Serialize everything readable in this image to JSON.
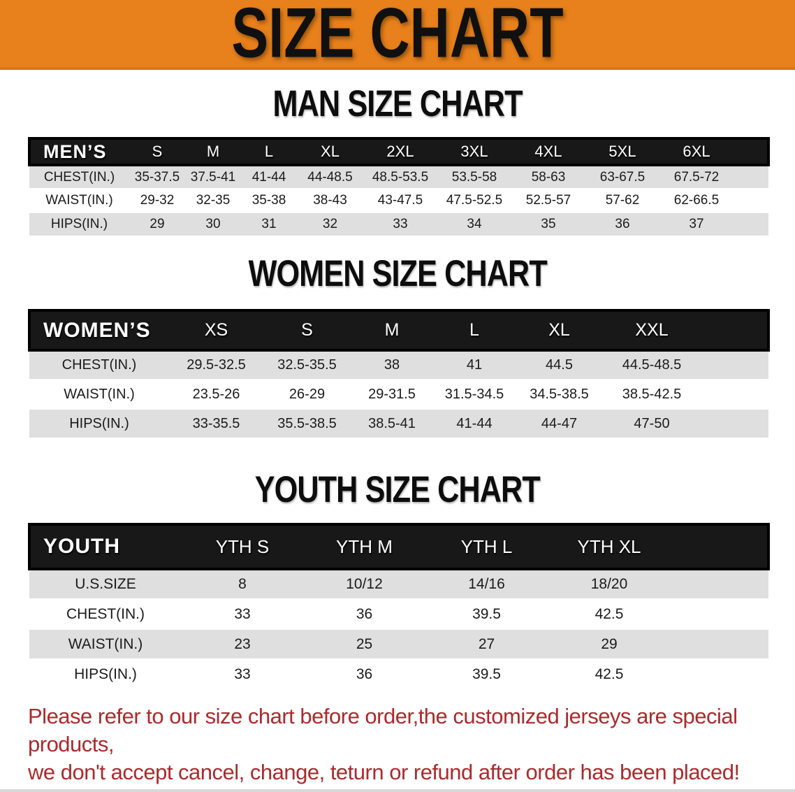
{
  "banner": {
    "title": "SIZE CHART"
  },
  "sections": [
    {
      "title": "MAN SIZE CHART",
      "table": {
        "corner": "MEN’S",
        "sizes": [
          "S",
          "M",
          "L",
          "XL",
          "2XL",
          "3XL",
          "4XL",
          "5XL",
          "6XL"
        ],
        "rows": [
          {
            "label": "CHEST(IN.)",
            "values": [
              "35-37.5",
              "37.5-41",
              "41-44",
              "44-48.5",
              "48.5-53.5",
              "53.5-58",
              "58-63",
              "63-67.5",
              "67.5-72"
            ]
          },
          {
            "label": "WAIST(IN.)",
            "values": [
              "29-32",
              "32-35",
              "35-38",
              "38-43",
              "43-47.5",
              "47.5-52.5",
              "52.5-57",
              "57-62",
              "62-66.5"
            ]
          },
          {
            "label": "HIPS(IN.)",
            "values": [
              "29",
              "30",
              "31",
              "32",
              "33",
              "34",
              "35",
              "36",
              "37"
            ]
          }
        ]
      }
    },
    {
      "title": "WOMEN SIZE CHART",
      "table": {
        "corner": "WOMEN’S",
        "sizes": [
          "XS",
          "S",
          "M",
          "L",
          "XL",
          "XXL"
        ],
        "rows": [
          {
            "label": "CHEST(IN.)",
            "values": [
              "29.5-32.5",
              "32.5-35.5",
              "38",
              "41",
              "44.5",
              "44.5-48.5"
            ]
          },
          {
            "label": "WAIST(IN.)",
            "values": [
              "23.5-26",
              "26-29",
              "29-31.5",
              "31.5-34.5",
              "34.5-38.5",
              "38.5-42.5"
            ]
          },
          {
            "label": "HIPS(IN.)",
            "values": [
              "33-35.5",
              "35.5-38.5",
              "38.5-41",
              "41-44",
              "44-47",
              "47-50"
            ]
          }
        ]
      }
    },
    {
      "title": "YOUTH SIZE CHART",
      "table": {
        "corner": "YOUTH",
        "sizes": [
          "YTH S",
          "YTH M",
          "YTH L",
          "YTH XL"
        ],
        "rows": [
          {
            "label": "U.S.SIZE",
            "values": [
              "8",
              "10/12",
              "14/16",
              "18/20"
            ]
          },
          {
            "label": "CHEST(IN.)",
            "values": [
              "33",
              "36",
              "39.5",
              "42.5"
            ]
          },
          {
            "label": "WAIST(IN.)",
            "values": [
              "23",
              "25",
              "27",
              "29"
            ]
          },
          {
            "label": "HIPS(IN.)",
            "values": [
              "33",
              "36",
              "39.5",
              "42.5"
            ]
          }
        ]
      }
    }
  ],
  "footer": {
    "line1": "Please refer to our size chart before order,the customized jerseys are special products,",
    "line2": "we don't accept cancel, change, teturn or refund after order has been placed!"
  },
  "colors": {
    "banner_bg": "#E8811B",
    "header_bg": "#181818",
    "stripe": "#DFDFDF",
    "footer_text": "#AC2A2D"
  }
}
